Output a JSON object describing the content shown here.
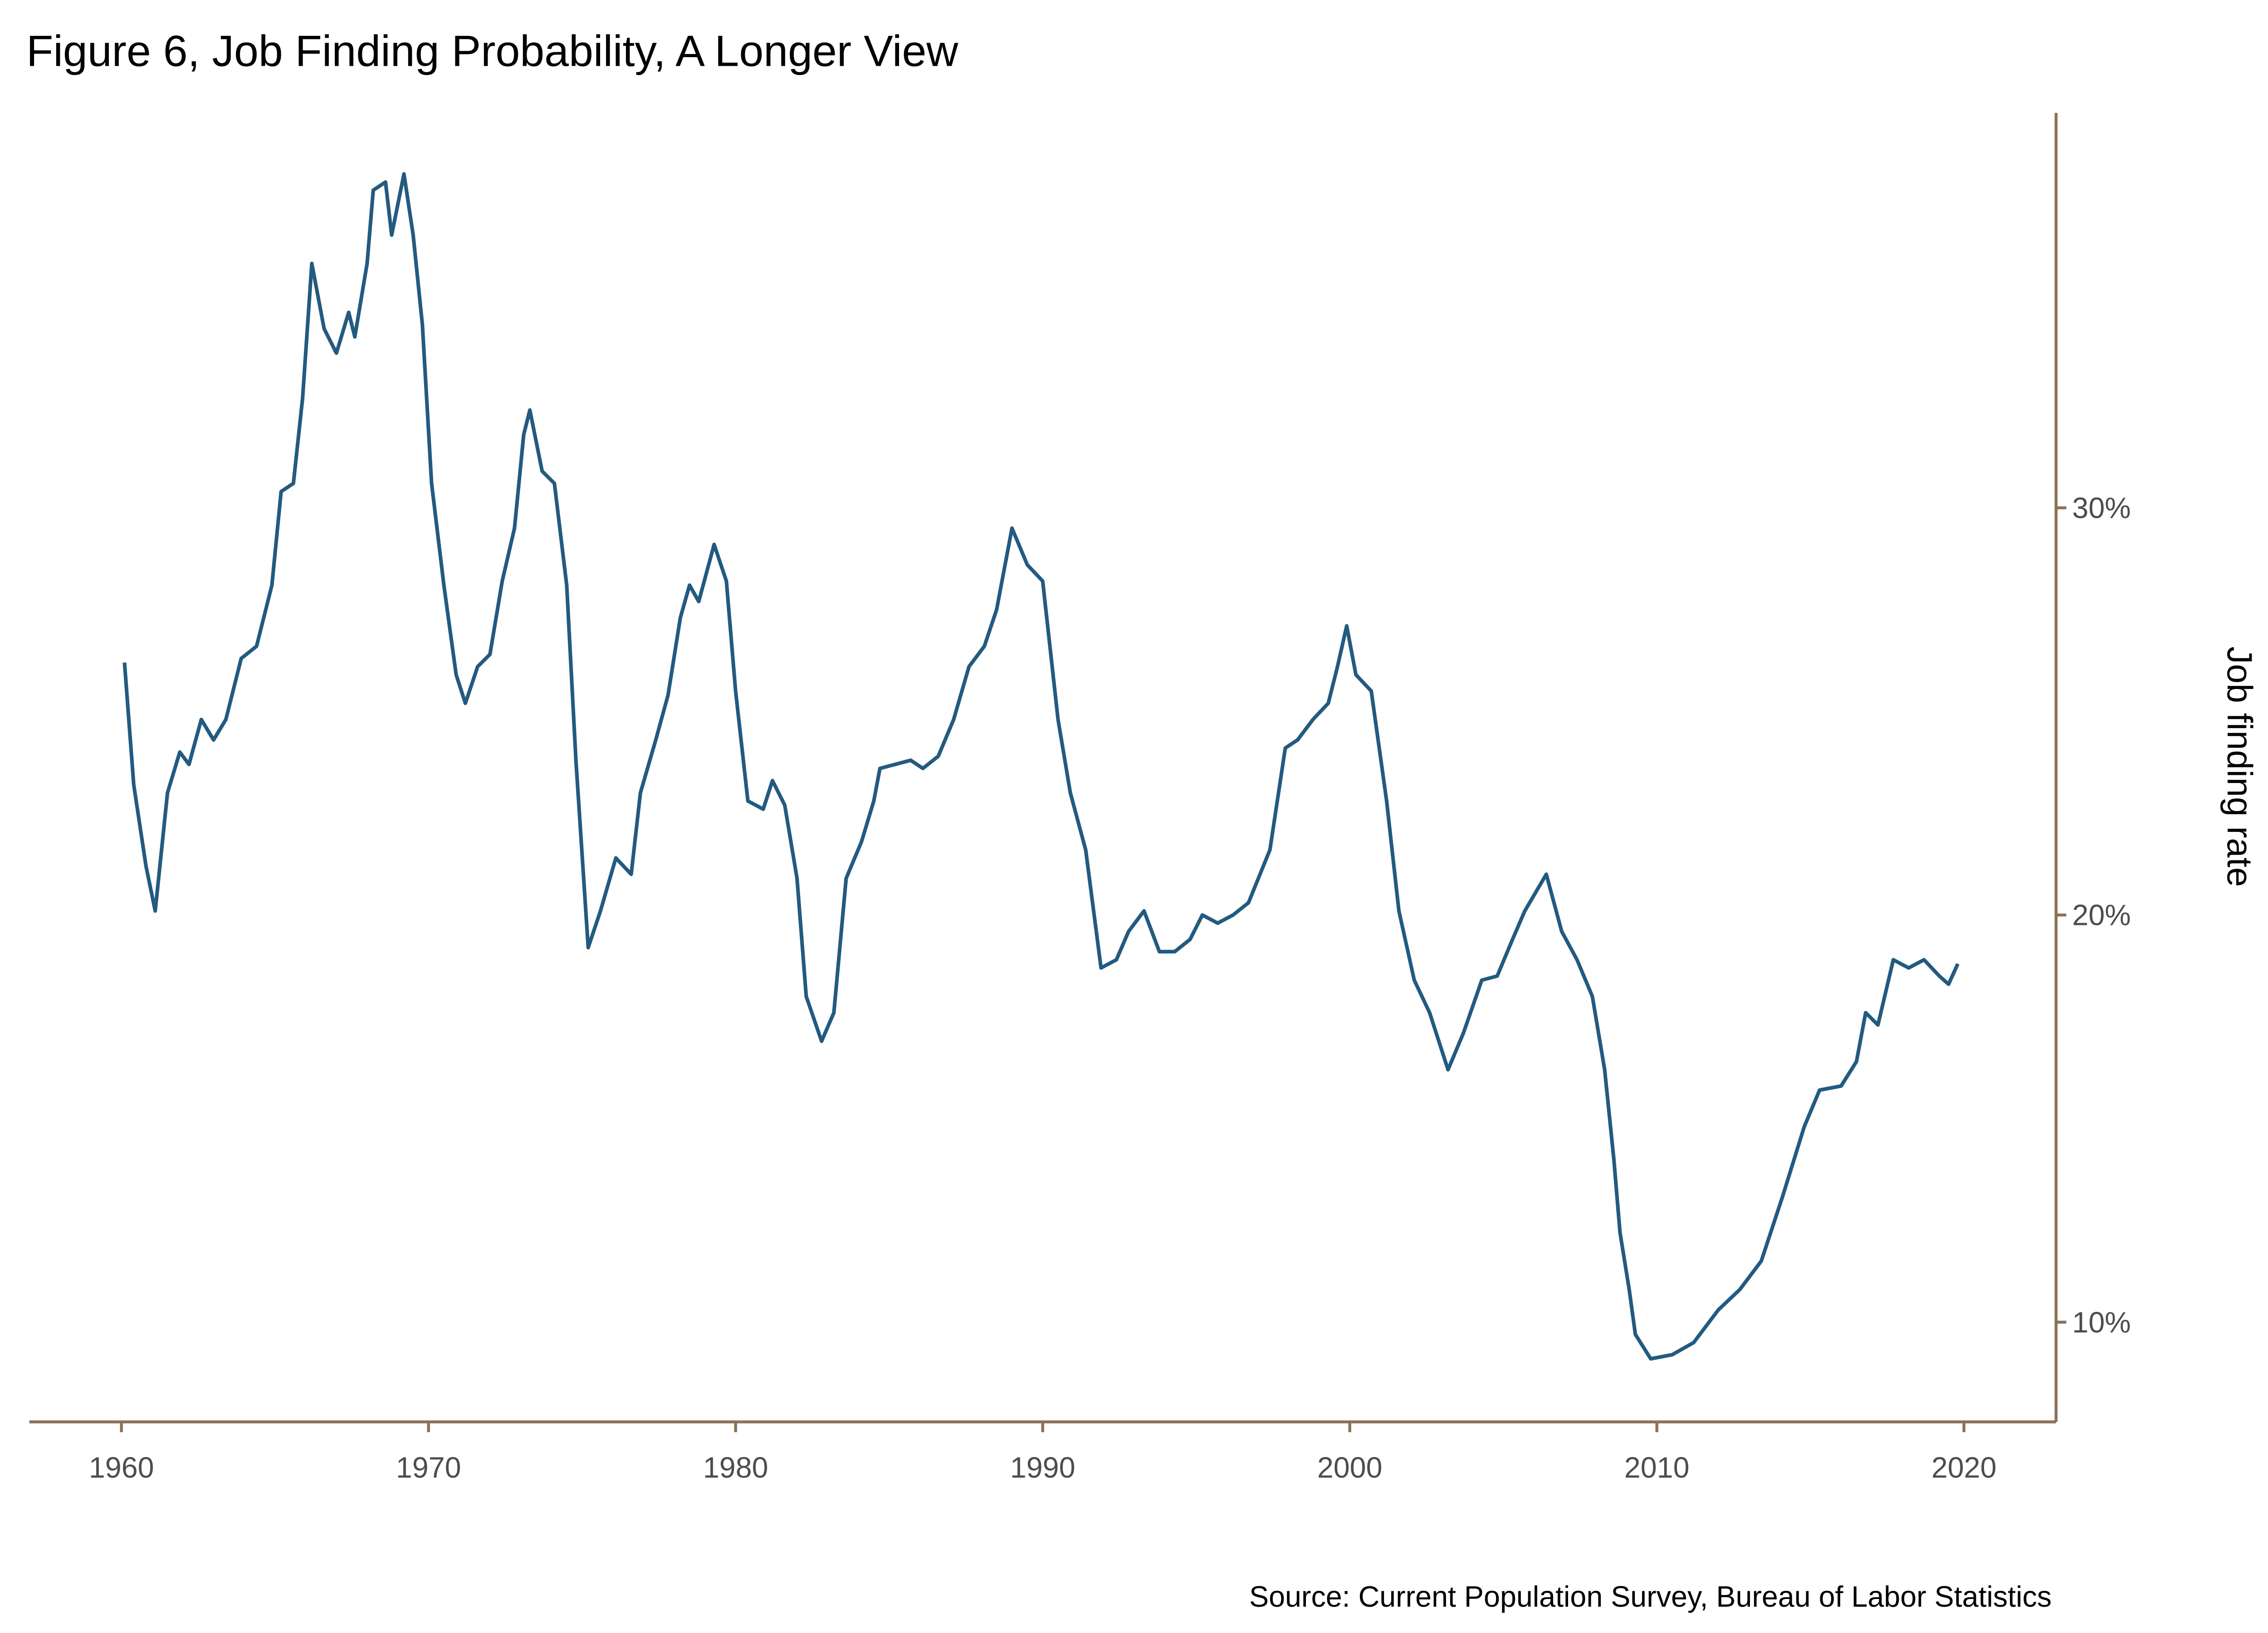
{
  "chart_data": {
    "type": "line",
    "title": "Figure 6, Job Finding Probability, A Longer View",
    "y_label": "Job finding rate",
    "caption": "Source: Current Population Survey, Bureau of Labor Statistics",
    "color": "#235a80",
    "axis_color": "#8b7258",
    "y_axis_side": "right",
    "grid": false,
    "xlim": [
      1957,
      2023
    ],
    "xticks": [
      1960,
      1970,
      1980,
      1990,
      2000,
      2010,
      2020
    ],
    "ylim": [
      7.55,
      39.7
    ],
    "yticks": [
      {
        "value": 10,
        "label": "10%"
      },
      {
        "value": 20,
        "label": "20%"
      },
      {
        "value": 30,
        "label": "30%"
      }
    ],
    "x": [
      1960.1,
      1960.4,
      1960.8,
      1961.1,
      1961.5,
      1961.9,
      1962.2,
      1962.6,
      1963.0,
      1963.4,
      1963.9,
      1964.4,
      1964.9,
      1965.2,
      1965.6,
      1965.9,
      1966.2,
      1966.6,
      1967.0,
      1967.4,
      1967.6,
      1968.0,
      1968.2,
      1968.6,
      1968.8,
      1969.2,
      1969.5,
      1969.8,
      1970.1,
      1970.5,
      1970.9,
      1971.2,
      1971.6,
      1972.0,
      1972.4,
      1972.8,
      1973.1,
      1973.3,
      1973.7,
      1974.1,
      1974.5,
      1974.8,
      1975.2,
      1975.6,
      1976.1,
      1976.6,
      1976.9,
      1977.4,
      1977.8,
      1978.2,
      1978.5,
      1978.8,
      1979.3,
      1979.7,
      1980.0,
      1980.4,
      1980.9,
      1981.2,
      1981.6,
      1982.0,
      1982.3,
      1982.8,
      1983.2,
      1983.6,
      1984.1,
      1984.5,
      1984.7,
      1985.7,
      1986.1,
      1986.6,
      1987.1,
      1987.6,
      1988.1,
      1988.5,
      1989.0,
      1989.5,
      1990.0,
      1990.5,
      1990.9,
      1991.4,
      1991.9,
      1992.4,
      1992.8,
      1993.3,
      1993.8,
      1994.3,
      1994.8,
      1995.2,
      1995.7,
      1996.2,
      1996.7,
      1997.4,
      1997.9,
      1998.3,
      1998.8,
      1999.3,
      1999.6,
      1999.9,
      2000.2,
      2000.7,
      2001.2,
      2001.6,
      2002.1,
      2002.6,
      2003.2,
      2003.7,
      2004.3,
      2004.8,
      2005.3,
      2005.7,
      2006.4,
      2006.9,
      2007.4,
      2007.9,
      2008.3,
      2008.6,
      2008.8,
      2009.1,
      2009.3,
      2009.8,
      2010.5,
      2011.2,
      2012.0,
      2012.7,
      2013.4,
      2014.1,
      2014.8,
      2015.3,
      2016.0,
      2016.5,
      2016.8,
      2017.2,
      2017.7,
      2018.2,
      2018.7,
      2019.2,
      2019.5,
      2019.8
    ],
    "values": [
      26.2,
      23.2,
      21.2,
      20.1,
      23.0,
      24.0,
      23.7,
      24.8,
      24.3,
      24.8,
      26.3,
      26.6,
      28.1,
      30.4,
      30.6,
      32.7,
      36.0,
      34.4,
      33.8,
      34.8,
      34.2,
      36.0,
      37.8,
      38.0,
      36.7,
      38.2,
      36.7,
      34.5,
      30.6,
      28.1,
      25.9,
      25.2,
      26.1,
      26.4,
      28.2,
      29.5,
      31.8,
      32.4,
      30.9,
      30.6,
      28.1,
      23.8,
      19.2,
      20.1,
      21.4,
      21.0,
      23.0,
      24.3,
      25.4,
      27.3,
      28.1,
      27.7,
      29.1,
      28.2,
      25.5,
      22.8,
      22.6,
      23.3,
      22.7,
      20.9,
      18.0,
      16.9,
      17.6,
      20.9,
      21.8,
      22.8,
      23.6,
      23.8,
      23.6,
      23.9,
      24.8,
      26.1,
      26.6,
      27.5,
      29.5,
      28.6,
      28.2,
      24.8,
      23.0,
      21.6,
      18.7,
      18.9,
      19.6,
      20.1,
      19.1,
      19.1,
      19.4,
      20.0,
      19.8,
      20.0,
      20.3,
      21.6,
      24.1,
      24.3,
      24.8,
      25.2,
      26.1,
      27.1,
      25.9,
      25.5,
      22.8,
      20.1,
      18.4,
      17.6,
      16.2,
      17.1,
      18.4,
      18.5,
      19.4,
      20.1,
      21.0,
      19.6,
      18.9,
      18.0,
      16.2,
      14.0,
      12.2,
      10.8,
      9.7,
      9.1,
      9.2,
      9.5,
      10.3,
      10.8,
      11.5,
      13.1,
      14.8,
      15.7,
      15.8,
      16.4,
      17.6,
      17.3,
      18.9,
      18.7,
      18.9,
      18.5,
      18.3,
      18.8
    ]
  }
}
